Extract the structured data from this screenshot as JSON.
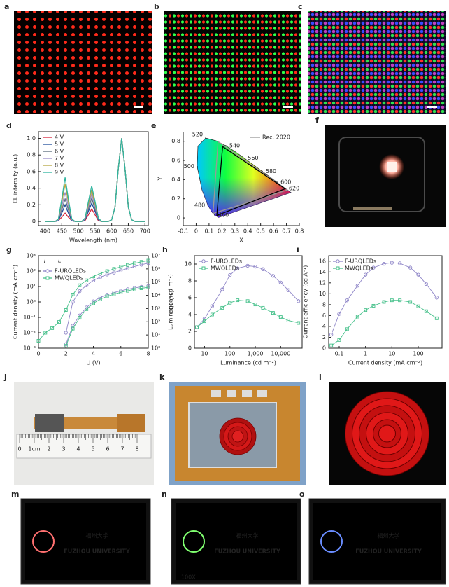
{
  "images": [
    {
      "label": "a"
    },
    {
      "label": "b"
    },
    {
      "label": "c"
    },
    {
      "label": "f"
    },
    {
      "label": "j",
      "texts": [
        "0",
        "1cm",
        "2",
        "3",
        "4",
        "5",
        "6",
        "7",
        "8"
      ]
    },
    {
      "label": "k"
    },
    {
      "label": "l"
    },
    {
      "label": "m",
      "texts": [
        "福州大学",
        "FUZHOU UNIVERSITY"
      ]
    },
    {
      "label": "n",
      "texts": [
        "福州大学",
        "FUZHOU UNIVERSITY",
        "100X"
      ]
    },
    {
      "label": "o",
      "texts": [
        "福州大学",
        "FUZHOU UNIVERSITY"
      ]
    }
  ],
  "chart_data": [
    {
      "type": "line",
      "label": "d",
      "x_label": "Wavelength (nm)",
      "y_label": "EL intensity (a.u.)",
      "x": [
        400,
        410,
        420,
        430,
        440,
        450,
        460,
        470,
        480,
        490,
        500,
        510,
        520,
        530,
        540,
        550,
        560,
        570,
        580,
        590,
        600,
        610,
        620,
        630,
        640,
        650,
        660,
        670,
        680,
        690,
        700
      ],
      "xlim": [
        380,
        710
      ],
      "xticks": [
        400,
        450,
        500,
        550,
        600,
        650,
        700
      ],
      "ylim": [
        -0.05,
        1.08
      ],
      "yticks": [
        0,
        0.2,
        0.4,
        0.6,
        0.8,
        {
          "value": 1,
          "label": "1.0"
        }
      ],
      "legend": "upper-left",
      "series": [
        {
          "name": "4 V",
          "color": "#d7263d",
          "values": [
            0,
            0,
            0,
            0,
            0.01,
            0.05,
            0.1,
            0.05,
            0.01,
            0,
            0,
            0,
            0.01,
            0.08,
            0.15,
            0.08,
            0.01,
            0,
            0,
            0,
            0.02,
            0.17,
            0.64,
            1,
            0.64,
            0.17,
            0.02,
            0,
            0,
            0,
            0
          ]
        },
        {
          "name": "5 V",
          "color": "#1f4e9c",
          "values": [
            0,
            0,
            0,
            0,
            0.01,
            0.1,
            0.2,
            0.1,
            0.01,
            0,
            0,
            0,
            0.02,
            0.12,
            0.22,
            0.12,
            0.02,
            0,
            0,
            0,
            0.02,
            0.17,
            0.64,
            1,
            0.64,
            0.17,
            0.02,
            0,
            0,
            0,
            0
          ]
        },
        {
          "name": "6 V",
          "color": "#5b6b7b",
          "values": [
            0,
            0,
            0,
            0,
            0.02,
            0.14,
            0.27,
            0.14,
            0.02,
            0,
            0,
            0,
            0.03,
            0.15,
            0.28,
            0.15,
            0.03,
            0,
            0,
            0,
            0.02,
            0.17,
            0.64,
            1,
            0.64,
            0.17,
            0.02,
            0,
            0,
            0,
            0
          ]
        },
        {
          "name": "7 V",
          "color": "#9c8ec9",
          "values": [
            0,
            0,
            0,
            0,
            0.02,
            0.18,
            0.35,
            0.18,
            0.02,
            0,
            0,
            0,
            0.03,
            0.18,
            0.33,
            0.18,
            0.03,
            0,
            0,
            0,
            0.02,
            0.17,
            0.64,
            1,
            0.64,
            0.17,
            0.02,
            0,
            0,
            0,
            0
          ]
        },
        {
          "name": "8 V",
          "color": "#b5a642",
          "values": [
            0,
            0,
            0,
            0,
            0.03,
            0.23,
            0.45,
            0.23,
            0.03,
            0,
            0,
            0,
            0.04,
            0.21,
            0.38,
            0.21,
            0.04,
            0,
            0,
            0,
            0.02,
            0.17,
            0.64,
            1,
            0.64,
            0.17,
            0.02,
            0,
            0,
            0,
            0
          ]
        },
        {
          "name": "9 V",
          "color": "#2fb5a0",
          "values": [
            0,
            0,
            0,
            0,
            0.03,
            0.27,
            0.53,
            0.27,
            0.03,
            0,
            0,
            0,
            0.04,
            0.24,
            0.43,
            0.24,
            0.04,
            0,
            0,
            0,
            0.02,
            0.17,
            0.64,
            1,
            0.64,
            0.17,
            0.02,
            0,
            0,
            0,
            0
          ]
        }
      ]
    },
    {
      "type": "cie",
      "label": "e",
      "x_label": "X",
      "y_label": "Y",
      "xlim": [
        -0.1,
        0.8
      ],
      "xticks": [
        -0.1,
        0,
        0.1,
        0.2,
        0.3,
        0.4,
        0.5,
        0.6,
        0.7,
        0.8
      ],
      "ylim": [
        -0.08,
        0.9
      ],
      "yticks": [
        0,
        0.2,
        0.4,
        0.6,
        0.8
      ],
      "legend": "upper-right",
      "locus": {
        "x": [
          0.1741,
          0.144,
          0.124,
          0.091,
          0.045,
          0.008,
          0.014,
          0.074,
          0.155,
          0.23,
          0.302,
          0.373,
          0.512,
          0.627,
          0.691,
          0.735
        ],
        "y": [
          0.005,
          0.03,
          0.058,
          0.133,
          0.295,
          0.538,
          0.75,
          0.834,
          0.806,
          0.754,
          0.692,
          0.624,
          0.487,
          0.373,
          0.308,
          0.265
        ]
      },
      "series": [
        {
          "name": "Rec. 2020",
          "color": "#999999",
          "x": [
            0.708,
            0.17,
            0.131
          ],
          "y": [
            0.292,
            0.797,
            0.046
          ]
        },
        {
          "color": "#000000",
          "x": [
            0.69,
            0.205,
            0.16
          ],
          "y": [
            0.305,
            0.745,
            0.025
          ]
        }
      ],
      "wavelength_labels": {
        "values": [
          460,
          480,
          500,
          520,
          540,
          560,
          580,
          600,
          620
        ],
        "x": [
          0.144,
          0.091,
          0.008,
          0.074,
          0.23,
          0.373,
          0.512,
          0.627,
          0.691
        ],
        "y": [
          0.03,
          0.133,
          0.538,
          0.834,
          0.754,
          0.624,
          0.487,
          0.373,
          0.308
        ]
      }
    },
    {
      "type": "line",
      "label": "g",
      "x_label": "U (V)",
      "y_label": "Current density (mA cm⁻²)",
      "y2_label": "Luminance (cd m⁻²)",
      "x": [
        0,
        0.5,
        1,
        1.5,
        2,
        2.5,
        3,
        3.5,
        4,
        4.5,
        5,
        5.5,
        6,
        6.5,
        7,
        7.5,
        8
      ],
      "xlim": [
        0,
        8
      ],
      "xticks": [
        0,
        2,
        4,
        6,
        8
      ],
      "ylog": true,
      "ylim": [
        0.001,
        1000
      ],
      "yticks": [
        {
          "value": 0.001,
          "label": "10⁻³"
        },
        {
          "value": 0.01,
          "label": "10⁻²"
        },
        {
          "value": 0.1,
          "label": "10⁻¹"
        },
        {
          "value": 1,
          "label": "10⁰"
        },
        {
          "value": 10,
          "label": "10¹"
        },
        {
          "value": 100,
          "label": "10²"
        },
        {
          "value": 1000,
          "label": "10³"
        }
      ],
      "y2log": true,
      "y2lim": [
        1,
        10000000
      ],
      "y2ticks": [
        {
          "value": 1,
          "label": "10⁰"
        },
        {
          "value": 10,
          "label": "10¹"
        },
        {
          "value": 100,
          "label": "10²"
        },
        {
          "value": 1000,
          "label": "10³"
        },
        {
          "value": 10000,
          "label": "10⁴"
        },
        {
          "value": 100000,
          "label": "10⁵"
        },
        {
          "value": 1000000,
          "label": "10⁶"
        },
        {
          "value": 10000000,
          "label": "10⁷"
        }
      ],
      "annotations": [
        "J",
        "L"
      ],
      "legend": "upper-left",
      "series": [
        {
          "name": "F-URQLEDs",
          "color": "#8f86c8",
          "marker": "circle",
          "values": [
            null,
            null,
            null,
            null,
            0.01,
            1,
            5,
            12,
            25,
            40,
            60,
            80,
            110,
            150,
            200,
            260,
            330
          ]
        },
        {
          "name": "MWQLEDs",
          "color": "#45c08a",
          "marker": "square",
          "values": [
            0.003,
            0.01,
            0.02,
            0.05,
            0.3,
            3,
            12,
            25,
            45,
            70,
            100,
            140,
            190,
            250,
            320,
            400,
            480
          ]
        },
        {
          "color": "#8f86c8",
          "marker": "circle",
          "axis": "y2",
          "values": [
            null,
            null,
            null,
            null,
            2,
            50,
            300,
            1200,
            3500,
            7000,
            11000,
            16000,
            22000,
            29000,
            36000,
            44000,
            52000
          ]
        },
        {
          "color": "#45c08a",
          "marker": "square",
          "axis": "y2",
          "values": [
            null,
            null,
            null,
            null,
            1.5,
            30,
            200,
            900,
            2500,
            5000,
            8500,
            12000,
            17000,
            22000,
            28000,
            34000,
            40000
          ]
        }
      ]
    },
    {
      "type": "line",
      "label": "h",
      "x_label": "Luminance (cd m⁻²)",
      "y_label": "EQE (%)",
      "x": [
        5,
        10,
        20,
        50,
        100,
        200,
        500,
        1000,
        2000,
        5000,
        10000,
        20000,
        50000
      ],
      "xlog": true,
      "xlim": [
        4,
        70000
      ],
      "xticks": [
        10,
        100,
        {
          "value": 1000,
          "label": "1,000"
        },
        {
          "value": 10000,
          "label": "10,000"
        }
      ],
      "ylim": [
        0,
        11
      ],
      "yticks": [
        0,
        2,
        4,
        6,
        8,
        10
      ],
      "legend": "upper-left",
      "series": [
        {
          "name": "F-URQLEDs",
          "color": "#8f86c8",
          "marker": "circle",
          "values": [
            2.5,
            3.5,
            5,
            7,
            8.7,
            9.5,
            9.8,
            9.7,
            9.4,
            8.6,
            7.8,
            6.9,
            5.6
          ]
        },
        {
          "name": "MWQLEDs",
          "color": "#45c08a",
          "marker": "square",
          "values": [
            2.5,
            3.2,
            4,
            4.8,
            5.4,
            5.7,
            5.6,
            5.2,
            4.8,
            4.2,
            3.7,
            3.3,
            3
          ]
        }
      ]
    },
    {
      "type": "line",
      "label": "i",
      "x_label": "Current density (mA cm⁻²)",
      "y_label": "Current efficiency (cd A⁻¹)",
      "x": [
        0.05,
        0.1,
        0.2,
        0.5,
        1,
        2,
        5,
        10,
        20,
        50,
        100,
        200,
        500
      ],
      "xlog": true,
      "xlim": [
        0.04,
        800
      ],
      "xticks": [
        0.1,
        1,
        10,
        100
      ],
      "ylim": [
        0,
        17
      ],
      "yticks": [
        0,
        2,
        4,
        6,
        8,
        10,
        12,
        14,
        16
      ],
      "legend": "upper-left",
      "series": [
        {
          "name": "F-URQLEDs",
          "color": "#8f86c8",
          "marker": "circle",
          "values": [
            2.5,
            6.3,
            8.8,
            11.5,
            13.5,
            14.8,
            15.5,
            15.7,
            15.6,
            14.8,
            13.5,
            11.8,
            9.3
          ]
        },
        {
          "name": "MWQLEDs",
          "color": "#45c08a",
          "marker": "square",
          "values": [
            0.5,
            1.5,
            3.5,
            5.8,
            7,
            7.8,
            8.5,
            8.8,
            8.8,
            8.5,
            7.7,
            6.8,
            5.5
          ]
        }
      ]
    }
  ]
}
